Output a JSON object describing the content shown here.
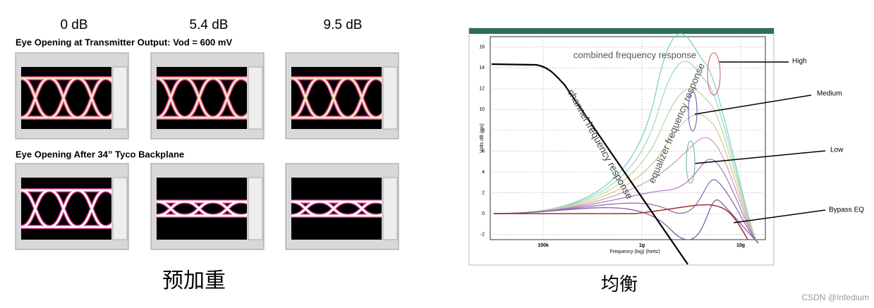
{
  "left": {
    "column_labels": [
      "0 dB",
      "5.4 dB",
      "9.5 dB"
    ],
    "row_titles": [
      "Eye Opening at Transmitter Output: Vod = 600 mV",
      "Eye Opening After 34” Tyco Backplane"
    ],
    "caption": "预加重"
  },
  "right": {
    "plot": {
      "y_axis_label": "Volts dB (mv)",
      "x_axis_label": "Frequency (log) (hertz)",
      "yticks": [
        16,
        14,
        12,
        10,
        8,
        6,
        4,
        2,
        0,
        -2
      ],
      "ylim": [
        -2.5,
        17
      ],
      "xtick_labels": [
        "100k",
        "1g",
        "10g"
      ],
      "annotations": {
        "combined": "combined frequency response",
        "channel": "channel frequency response",
        "equalizer": "equalizer frequency response"
      },
      "callouts": [
        "High",
        "Medium",
        "Low",
        "Bypass EQ"
      ]
    },
    "caption": "均衡"
  },
  "watermark": "CSDN @Infedium"
}
